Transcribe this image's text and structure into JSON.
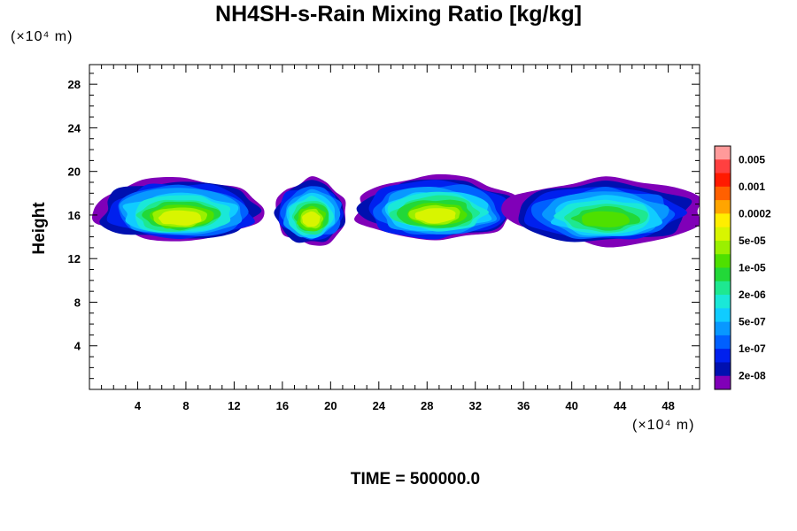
{
  "chart_data": {
    "type": "heatmap",
    "title": "NH4SH-s-Rain Mixing Ratio [kg/kg]",
    "ylabel": "Height",
    "x_unit": "(×10⁴ m)",
    "y_unit": "(×10⁴ m)",
    "x_ticks": [
      4,
      8,
      12,
      16,
      20,
      24,
      28,
      32,
      36,
      40,
      44,
      48
    ],
    "y_ticks": [
      4,
      8,
      12,
      16,
      20,
      24,
      28
    ],
    "xlim": [
      0,
      50.6
    ],
    "ylim": [
      0,
      29.8
    ],
    "colorbar": {
      "labels": [
        "0.005",
        "0.001",
        "0.0002",
        "5e-05",
        "1e-05",
        "2e-06",
        "5e-07",
        "1e-07",
        "2e-08"
      ],
      "colors": [
        "#ff9a9a",
        "#ff4040",
        "#ff1a00",
        "#ff6000",
        "#ffa500",
        "#ffee00",
        "#d8f500",
        "#9af000",
        "#4ee000",
        "#22d838",
        "#1ee890",
        "#1ae8d8",
        "#10ccff",
        "#0898ff",
        "#0060ff",
        "#0020ee",
        "#0010b0",
        "#8000b8"
      ]
    },
    "cells": [
      {
        "x": [
          0.5,
          14.5
        ],
        "y": [
          13.8,
          19.6
        ],
        "peak": "0.0002",
        "max_level": 11
      },
      {
        "x": [
          15.3,
          21.5
        ],
        "y": [
          13.6,
          19.5
        ],
        "peak": "0.0002",
        "max_level": 11
      },
      {
        "x": [
          22.0,
          35.5
        ],
        "y": [
          14.0,
          19.8
        ],
        "peak": "0.0002",
        "max_level": 11
      },
      {
        "x": [
          35.0,
          50.6
        ],
        "y": [
          13.6,
          19.6
        ],
        "peak": "5e-05",
        "max_level": 9
      }
    ]
  },
  "footer": "TIME = 500000.0"
}
